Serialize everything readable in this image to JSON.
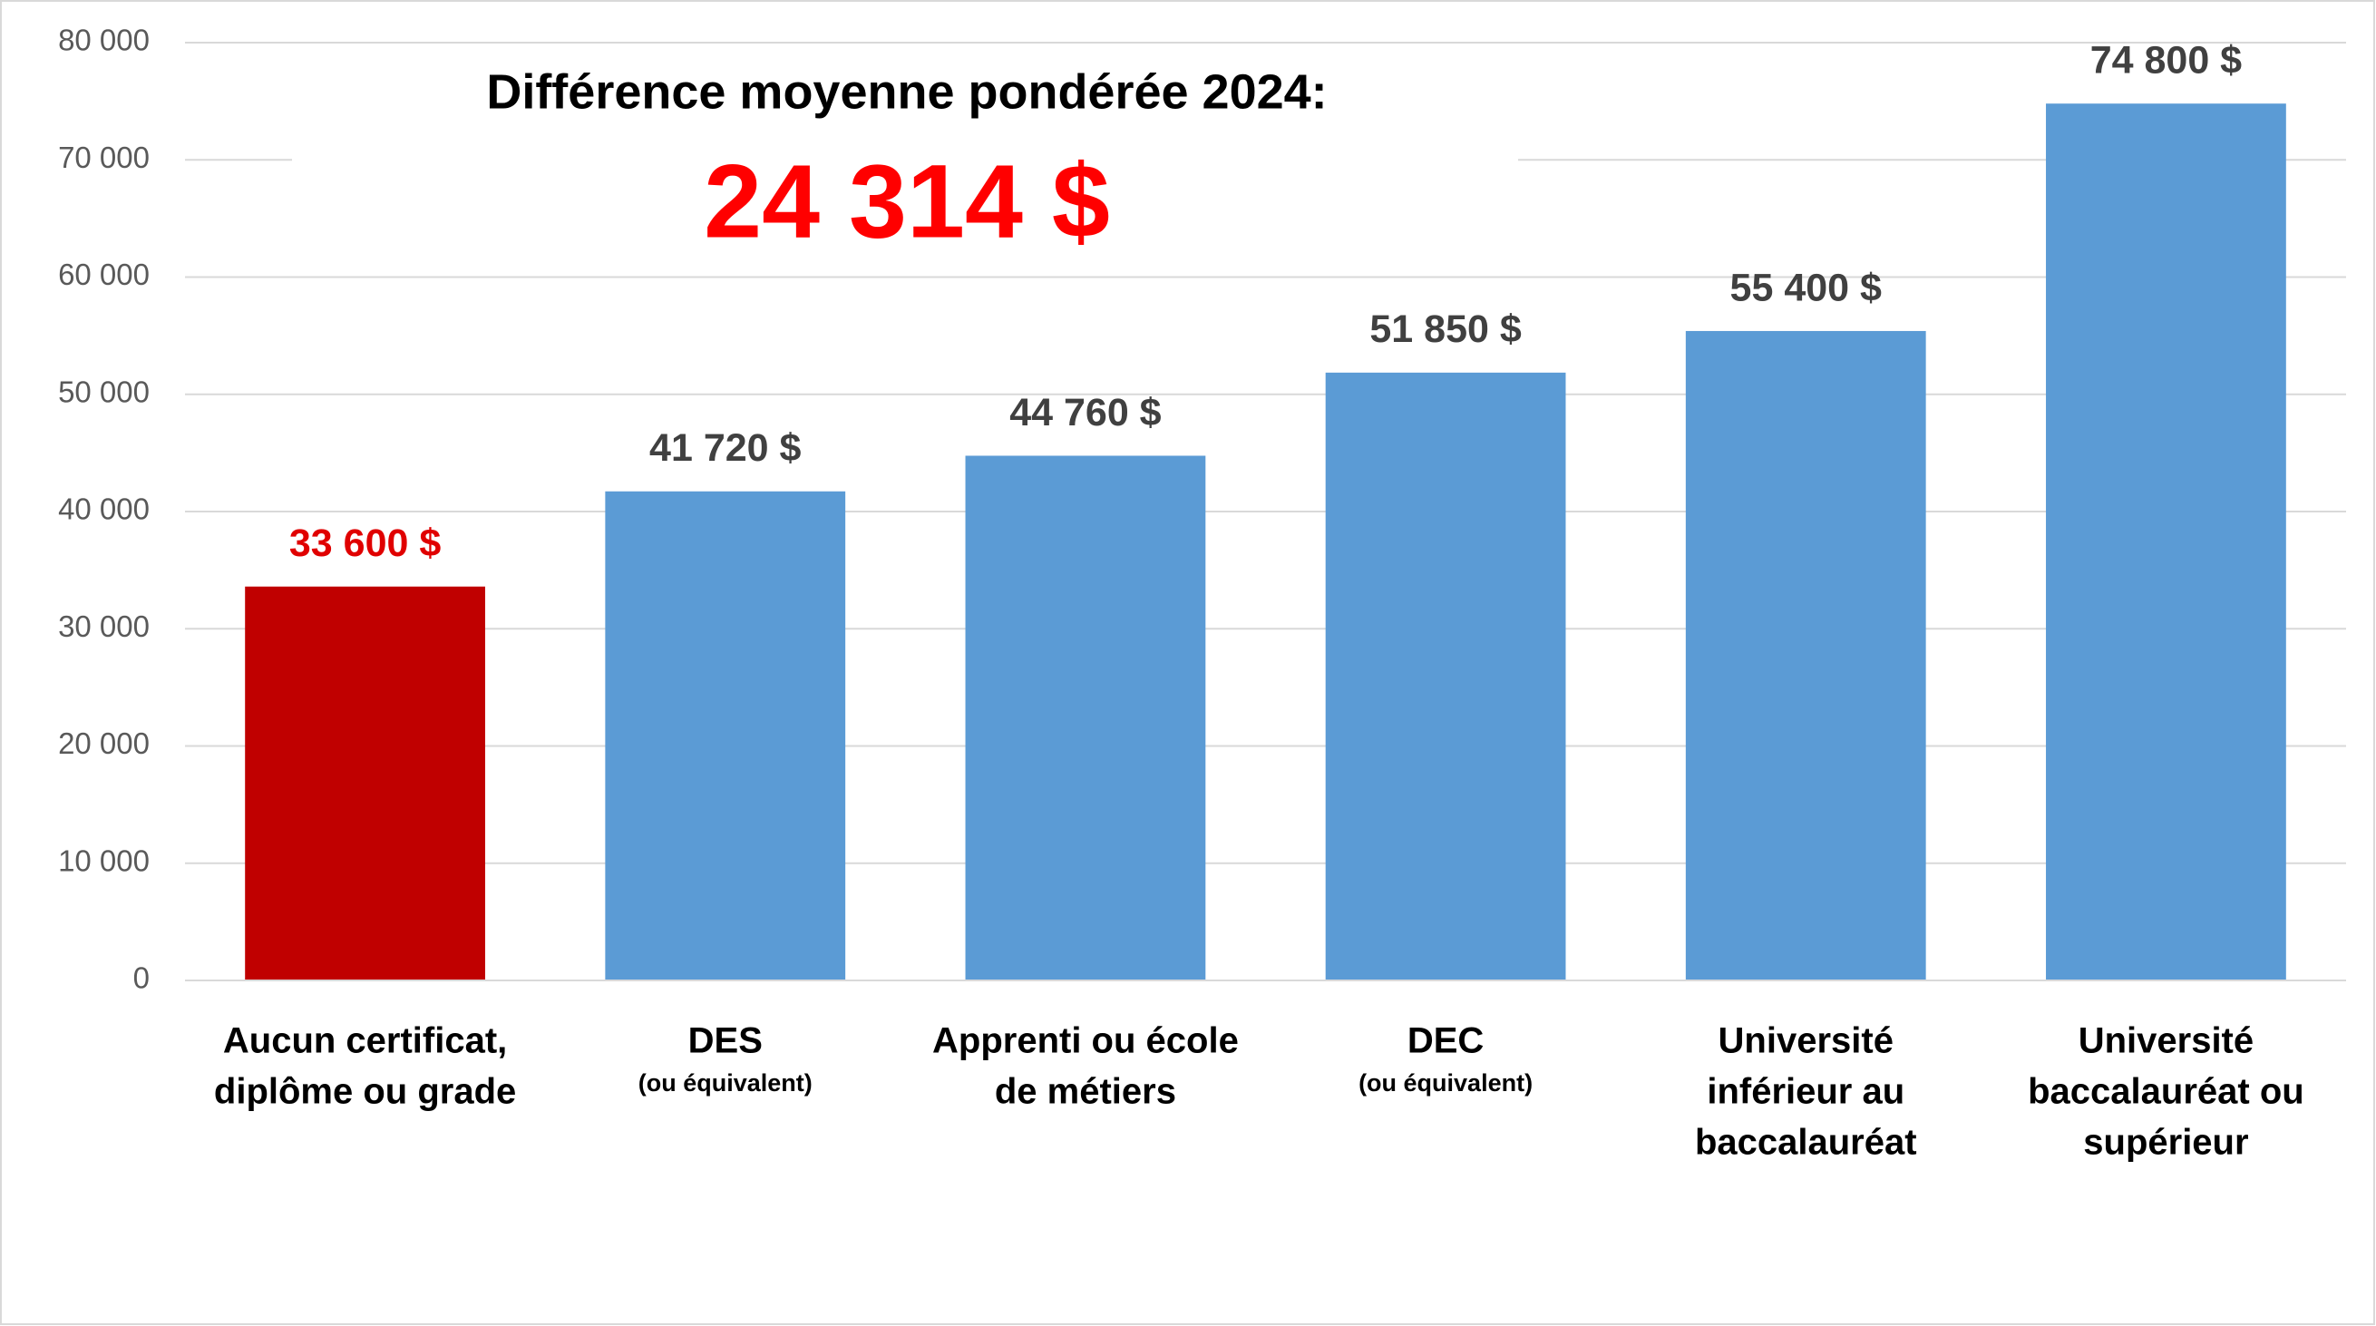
{
  "chart_data": {
    "type": "bar",
    "annotations": [
      "Différence moyenne pondérée 2024:",
      "24 314 $"
    ],
    "categories": [
      [
        "Aucun certificat,",
        "diplôme ou grade"
      ],
      [
        "DES"
      ],
      [
        "Apprenti ou école",
        "de métiers"
      ],
      [
        "DEC"
      ],
      [
        "Université",
        "inférieur au",
        "baccalauréat"
      ],
      [
        "Université",
        "baccalauréat ou",
        "supérieur"
      ]
    ],
    "category_notes": [
      null,
      "(ou équivalent)",
      null,
      "(ou équivalent)",
      null,
      null
    ],
    "values": [
      33600,
      41720,
      44760,
      51850,
      55400,
      74800
    ],
    "value_labels": [
      "33 600 $",
      "41 720 $",
      "44 760 $",
      "51 850 $",
      "55 400 $",
      "74 800 $"
    ],
    "colors": [
      "#c00000",
      "#5b9bd5",
      "#5b9bd5",
      "#5b9bd5",
      "#5b9bd5",
      "#5b9bd5"
    ],
    "value_label_colors": [
      "#e00000",
      "#404040",
      "#404040",
      "#404040",
      "#404040",
      "#404040"
    ],
    "ylim": [
      0,
      80000
    ],
    "yticks": [
      0,
      {
        "value": 10000,
        "label": "10 000"
      },
      {
        "value": 20000,
        "label": "20 000"
      },
      {
        "value": 30000,
        "label": "30 000"
      },
      {
        "value": 40000,
        "label": "40 000"
      },
      {
        "value": 50000,
        "label": "50 000"
      },
      {
        "value": 60000,
        "label": "60 000"
      },
      {
        "value": 70000,
        "label": "70 000"
      },
      {
        "value": 80000,
        "label": "80 000"
      }
    ],
    "grid": true
  }
}
